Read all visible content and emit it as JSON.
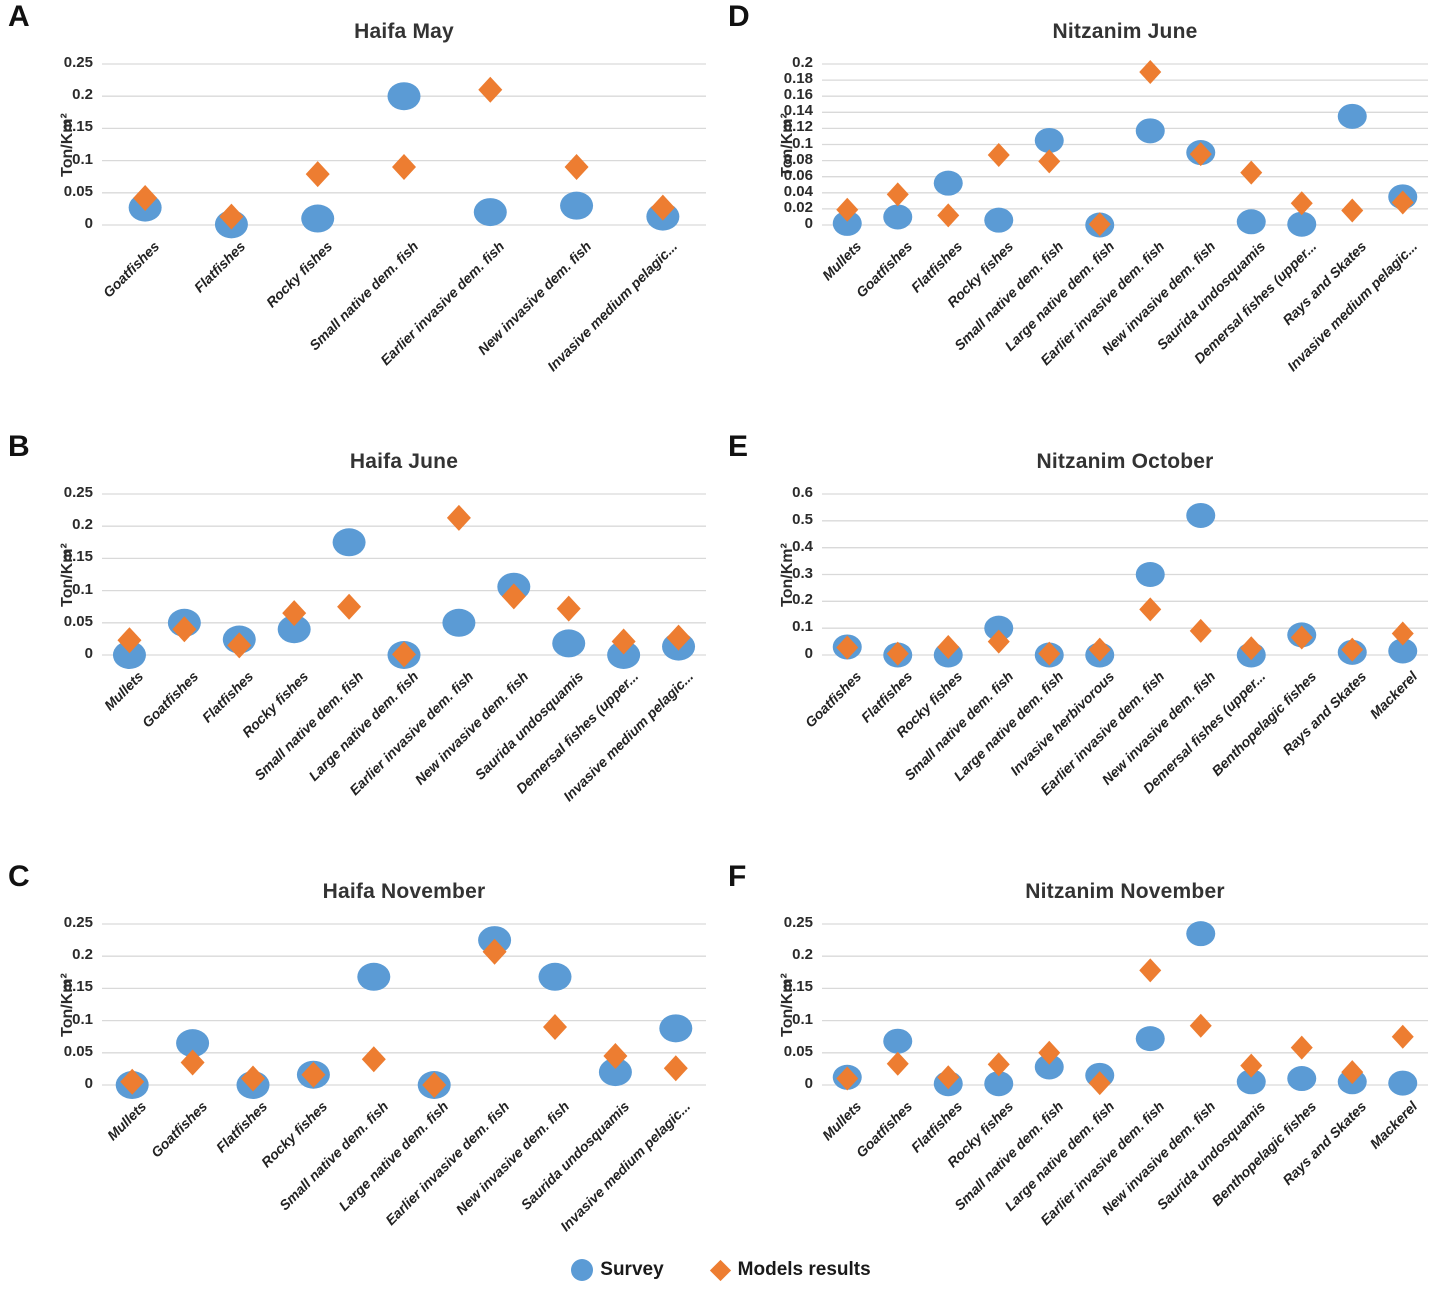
{
  "legend": {
    "survey_label": "Survey",
    "models_label": "Models results",
    "survey_color": "#5B9BD5",
    "models_color": "#ED7D31",
    "gridline_color": "#D9D9D9"
  },
  "chart_data": [
    {
      "letter": "A",
      "title": "Haifa May",
      "type": "scatter",
      "ylabel": "Ton/Km²",
      "ylim": [
        0,
        0.25
      ],
      "ytick_step": 0.05,
      "grid": true,
      "categories": [
        "Goatfishes",
        "Flatfishes",
        "Rocky fishes",
        "Small native dem. fish",
        "Earlier invasive dem. fish",
        "New invasive dem. fish",
        "Invasive medium pelagic..."
      ],
      "series": [
        {
          "name": "Survey",
          "marker": "circle",
          "color": "#5B9BD5",
          "values": [
            0.027,
            0.001,
            0.01,
            0.2,
            0.02,
            0.03,
            0.013
          ]
        },
        {
          "name": "Models results",
          "marker": "diamond",
          "color": "#ED7D31",
          "values": [
            0.042,
            0.013,
            0.079,
            0.09,
            0.21,
            0.09,
            0.027
          ]
        }
      ]
    },
    {
      "letter": "B",
      "title": "Haifa June",
      "type": "scatter",
      "ylabel": "Ton/Km²",
      "ylim": [
        0,
        0.25
      ],
      "ytick_step": 0.05,
      "grid": true,
      "categories": [
        "Mullets",
        "Goatfishes",
        "Flatfishes",
        "Rocky fishes",
        "Small native dem. fish",
        "Large native dem. fish",
        "Earlier invasive dem. fish",
        "New invasive dem. fish",
        "Saurida undosquamis",
        "Demersal fishes (upper...",
        "Invasive medium pelagic..."
      ],
      "series": [
        {
          "name": "Survey",
          "marker": "circle",
          "color": "#5B9BD5",
          "values": [
            0.0,
            0.05,
            0.024,
            0.04,
            0.175,
            0.0,
            0.05,
            0.106,
            0.018,
            0.0,
            0.013
          ]
        },
        {
          "name": "Models results",
          "marker": "diamond",
          "color": "#ED7D31",
          "values": [
            0.023,
            0.04,
            0.015,
            0.065,
            0.075,
            0.001,
            0.213,
            0.091,
            0.072,
            0.021,
            0.027
          ]
        }
      ]
    },
    {
      "letter": "C",
      "title": "Haifa November",
      "type": "scatter",
      "ylabel": "Ton/Km²",
      "ylim": [
        0,
        0.25
      ],
      "ytick_step": 0.05,
      "grid": true,
      "categories": [
        "Mullets",
        "Goatfishes",
        "Flatfishes",
        "Rocky fishes",
        "Small native dem. fish",
        "Large native dem. fish",
        "Earlier invasive dem. fish",
        "New invasive dem. fish",
        "Saurida undosquamis",
        "Invasive medium pelagic..."
      ],
      "series": [
        {
          "name": "Survey",
          "marker": "circle",
          "color": "#5B9BD5",
          "values": [
            0.0,
            0.065,
            0.0,
            0.016,
            0.168,
            0.0,
            0.225,
            0.168,
            0.02,
            0.088
          ]
        },
        {
          "name": "Models results",
          "marker": "diamond",
          "color": "#ED7D31",
          "values": [
            0.005,
            0.035,
            0.01,
            0.016,
            0.04,
            0.0,
            0.207,
            0.09,
            0.045,
            0.026
          ]
        }
      ]
    },
    {
      "letter": "D",
      "title": "Nitzanim June",
      "type": "scatter",
      "ylabel": "Ton/Km²",
      "ylim": [
        0,
        0.2
      ],
      "ytick_step": 0.02,
      "grid": true,
      "categories": [
        "Mullets",
        "Goatfishes",
        "Flatfishes",
        "Rocky fishes",
        "Small native dem. fish",
        "Large native dem. fish",
        "Earlier invasive dem. fish",
        "New invasive dem. fish",
        "Saurida undosquamis",
        "Demersal fishes (upper...",
        "Rays and Skates",
        "Invasive medium pelagic..."
      ],
      "series": [
        {
          "name": "Survey",
          "marker": "circle",
          "color": "#5B9BD5",
          "values": [
            0.002,
            0.01,
            0.052,
            0.006,
            0.105,
            0.0,
            0.117,
            0.09,
            0.004,
            0.001,
            0.135,
            0.035
          ]
        },
        {
          "name": "Models results",
          "marker": "diamond",
          "color": "#ED7D31",
          "values": [
            0.019,
            0.038,
            0.012,
            0.087,
            0.079,
            0.001,
            0.19,
            0.088,
            0.065,
            0.027,
            0.018,
            0.028
          ]
        }
      ]
    },
    {
      "letter": "E",
      "title": "Nitzanim  October",
      "type": "scatter",
      "ylabel": "Ton/Km²",
      "ylim": [
        0,
        0.6
      ],
      "ytick_step": 0.1,
      "grid": true,
      "categories": [
        "Goatfishes",
        "Flatfishes",
        "Rocky fishes",
        "Small native dem. fish",
        "Large native dem. fish",
        "Invasive herbivorous",
        "Earlier invasive dem. fish",
        "New invasive dem. fish",
        "Demersal fishes (upper...",
        "Benthopelagic fishes",
        "Rays and Skates",
        "Mackerel"
      ],
      "series": [
        {
          "name": "Survey",
          "marker": "circle",
          "color": "#5B9BD5",
          "values": [
            0.03,
            0.0,
            0.0,
            0.1,
            0.0,
            0.0,
            0.3,
            0.52,
            0.0,
            0.075,
            0.01,
            0.015
          ]
        },
        {
          "name": "Models results",
          "marker": "diamond",
          "color": "#ED7D31",
          "values": [
            0.028,
            0.005,
            0.03,
            0.05,
            0.005,
            0.02,
            0.17,
            0.09,
            0.025,
            0.065,
            0.02,
            0.08
          ]
        }
      ]
    },
    {
      "letter": "F",
      "title": "Nitzanim November",
      "type": "scatter",
      "ylabel": "Ton/Km²",
      "ylim": [
        0,
        0.25
      ],
      "ytick_step": 0.05,
      "grid": true,
      "categories": [
        "Mullets",
        "Goatfishes",
        "Flatfishes",
        "Rocky fishes",
        "Small native dem. fish",
        "Large native dem. fish",
        "Earlier invasive dem. fish",
        "New invasive dem. fish",
        "Saurida undosquamis",
        "Benthopelagic fishes",
        "Rays and Skates",
        "Mackerel"
      ],
      "series": [
        {
          "name": "Survey",
          "marker": "circle",
          "color": "#5B9BD5",
          "values": [
            0.012,
            0.068,
            0.002,
            0.002,
            0.028,
            0.015,
            0.072,
            0.235,
            0.005,
            0.01,
            0.005,
            0.003
          ]
        },
        {
          "name": "Models results",
          "marker": "diamond",
          "color": "#ED7D31",
          "values": [
            0.01,
            0.033,
            0.012,
            0.032,
            0.05,
            0.003,
            0.178,
            0.092,
            0.03,
            0.058,
            0.02,
            0.075
          ]
        }
      ]
    }
  ]
}
